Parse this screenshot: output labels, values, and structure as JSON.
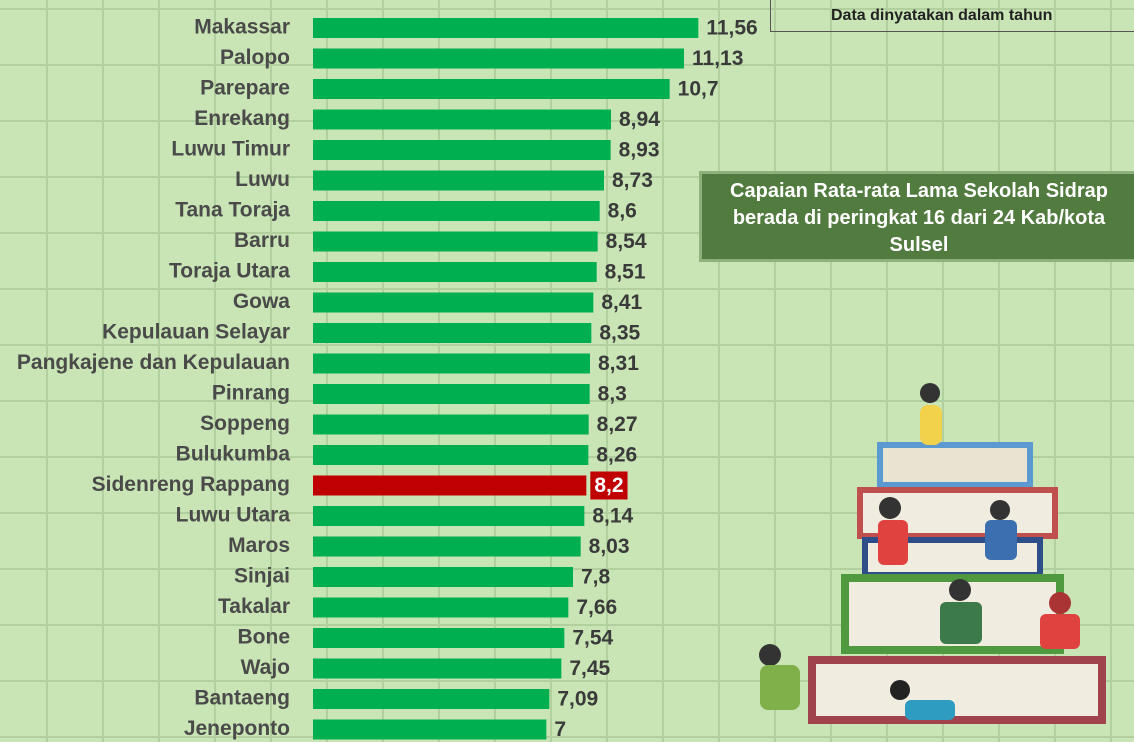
{
  "chart_data": {
    "type": "barh",
    "annotations": [
      "Data dinyatakan dalam tahun",
      "Capaian Rata-rata Lama Sekolah Sidrap berada di peringkat 16 dari 24 Kab/kota Sulsel"
    ],
    "categories": [
      "Makassar",
      "Palopo",
      "Parepare",
      "Enrekang",
      "Luwu Timur",
      "Luwu",
      "Tana Toraja",
      "Barru",
      "Toraja Utara",
      "Gowa",
      "Kepulauan Selayar",
      "Pangkajene dan Kepulauan",
      "Pinrang",
      "Soppeng",
      "Bulukumba",
      "Sidenreng Rappang",
      "Luwu Utara",
      "Maros",
      "Sinjai",
      "Takalar",
      "Bone",
      "Wajo",
      "Bantaeng",
      "Jeneponto"
    ],
    "values": [
      11.56,
      11.13,
      10.7,
      8.94,
      8.93,
      8.73,
      8.6,
      8.54,
      8.51,
      8.41,
      8.35,
      8.31,
      8.3,
      8.27,
      8.26,
      8.2,
      8.14,
      8.03,
      7.8,
      7.66,
      7.54,
      7.45,
      7.09,
      7
    ],
    "value_labels": [
      "11,56",
      "11,13",
      "10,7",
      "8,94",
      "8,93",
      "8,73",
      "8,6",
      "8,54",
      "8,51",
      "8,41",
      "8,35",
      "8,31",
      "8,3",
      "8,27",
      "8,26",
      "8,2",
      "8,14",
      "8,03",
      "7,8",
      "7,66",
      "7,54",
      "7,45",
      "7,09",
      "7"
    ],
    "colors": [
      "#00b050",
      "#00b050",
      "#00b050",
      "#00b050",
      "#00b050",
      "#00b050",
      "#00b050",
      "#00b050",
      "#00b050",
      "#00b050",
      "#00b050",
      "#00b050",
      "#00b050",
      "#00b050",
      "#00b050",
      "#c00000",
      "#00b050",
      "#00b050",
      "#00b050",
      "#00b050",
      "#00b050",
      "#00b050",
      "#00b050",
      "#00b050"
    ],
    "xlim": [
      0,
      12
    ]
  }
}
